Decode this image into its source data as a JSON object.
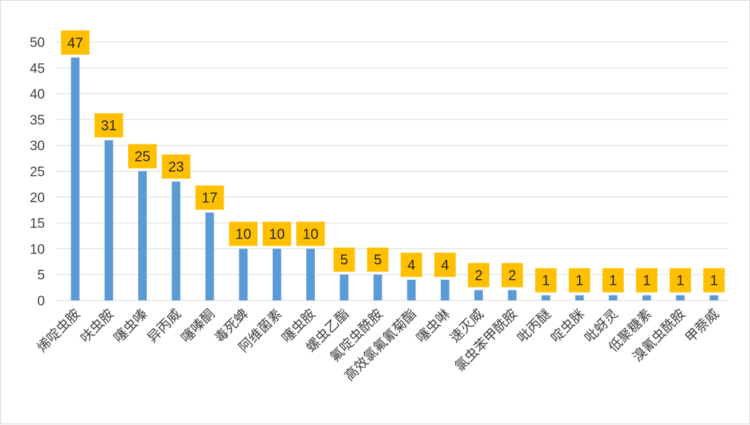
{
  "chart_data": {
    "type": "bar",
    "categories": [
      "烯啶虫胺",
      "呋虫胺",
      "噻虫嗪",
      "异丙威",
      "噻嗪酮",
      "毒死蜱",
      "阿维菌素",
      "噻虫胺",
      "螺虫乙酯",
      "氟啶虫酰胺",
      "高效氯氟氰菊酯",
      "噻虫啉",
      "速灭威",
      "氯虫苯甲酰胺",
      "吡丙醚",
      "啶虫脒",
      "吡蚜灵",
      "低聚糖素",
      "溴氰虫酰胺",
      "甲萘威"
    ],
    "values": [
      47,
      31,
      25,
      23,
      17,
      10,
      10,
      10,
      5,
      5,
      4,
      4,
      2,
      2,
      1,
      1,
      1,
      1,
      1,
      1
    ],
    "title": "",
    "xlabel": "",
    "ylabel": "",
    "ylim": [
      0,
      50
    ],
    "yticks": [
      0,
      5,
      10,
      15,
      20,
      25,
      30,
      35,
      40,
      45,
      50
    ],
    "grid": true,
    "legend": "none",
    "data_labels": true,
    "colors": {
      "bar": "#5b9bd5",
      "label_bg": "#ffc000",
      "grid": "#d9d9d9",
      "text": "#404040"
    }
  }
}
